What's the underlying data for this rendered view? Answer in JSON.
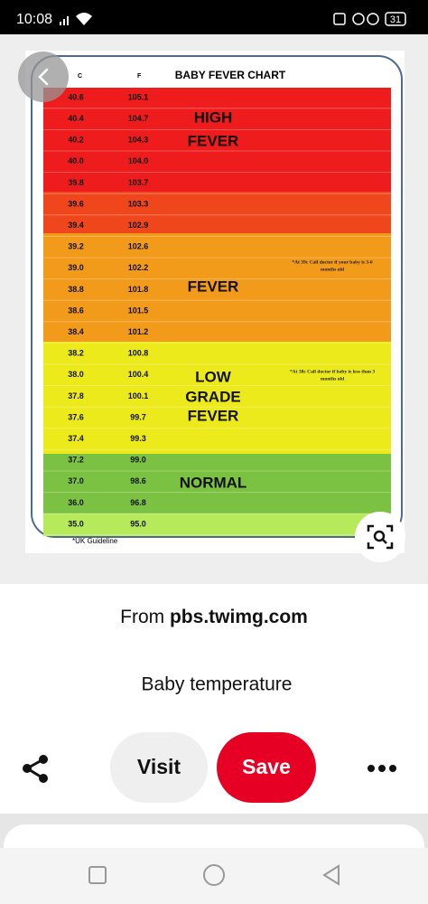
{
  "status_bar": {
    "time": "10:08",
    "battery": "31"
  },
  "chart_image": {
    "header": {
      "celsius": "C",
      "fahrenheit": "F",
      "title": "BABY FEVER CHART"
    },
    "rows": [
      [
        "40.6",
        "105.1"
      ],
      [
        "40.4",
        "104.7"
      ],
      [
        "40.2",
        "104.3"
      ],
      [
        "40.0",
        "104.0"
      ],
      [
        "39.8",
        "103.7"
      ],
      [
        "39.6",
        "103.3"
      ],
      [
        "39.4",
        "102.9"
      ],
      [
        "39.2",
        "102.6"
      ],
      [
        "39.0",
        "102.2"
      ],
      [
        "38.8",
        "101.8"
      ],
      [
        "38.6",
        "101.5"
      ],
      [
        "38.4",
        "101.2"
      ],
      [
        "38.2",
        "100.8"
      ],
      [
        "38.0",
        "100.4"
      ],
      [
        "37.8",
        "100.1"
      ],
      [
        "37.6",
        "99.7"
      ],
      [
        "37.4",
        "99.3"
      ],
      [
        "37.2",
        "99.0"
      ],
      [
        "37.0",
        "98.6"
      ],
      [
        "36.0",
        "96.8"
      ],
      [
        "35.0",
        "95.0"
      ]
    ],
    "zones": [
      [
        "HIGH",
        "FEVER"
      ],
      [
        "FEVER"
      ],
      [
        "LOW",
        "GRADE",
        "FEVER"
      ],
      [
        "NORMAL"
      ]
    ],
    "notes": [
      [
        "*At 39c Call doctor if your baby is 3-6",
        "months old"
      ],
      [
        "*At 38c Call doctor if baby is less than 3",
        "months old"
      ]
    ],
    "footnote": "*UK Guideline"
  },
  "source": {
    "prefix": "From",
    "domain": "pbs.twimg.com"
  },
  "pin_title": "Baby temperature",
  "buttons": {
    "visit": "Visit",
    "save": "Save"
  }
}
